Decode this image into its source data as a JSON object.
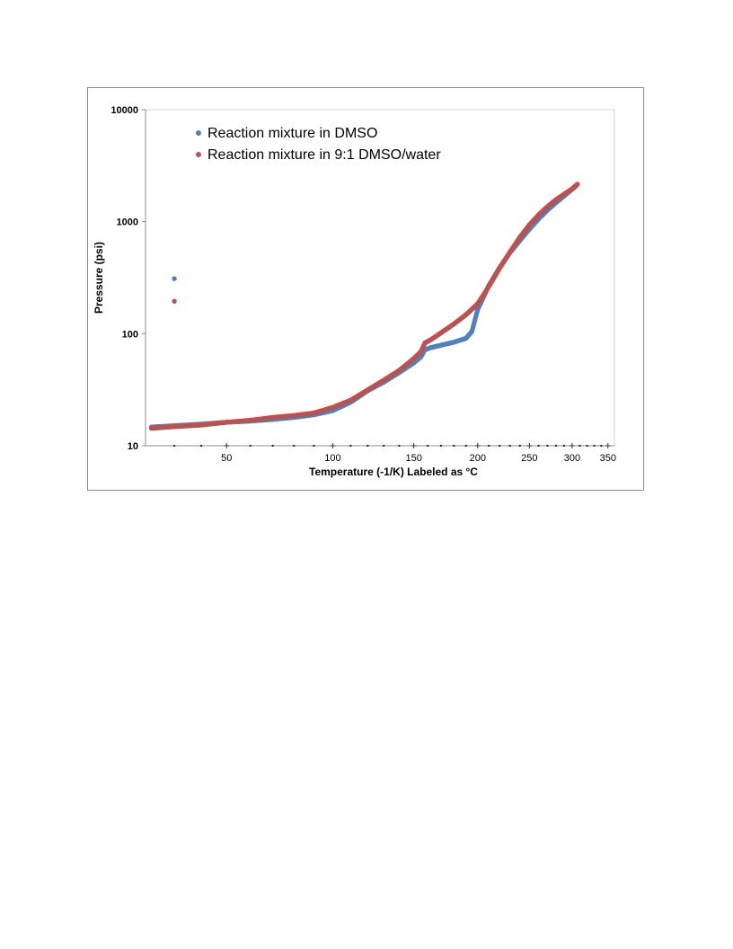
{
  "chart_data": {
    "type": "scatter",
    "xlabel": "Temperature (-1/K) Labeled as °C",
    "ylabel": "Pressure (psi)",
    "y_scale": "log",
    "ylim": [
      10,
      10000
    ],
    "y_ticks": [
      10,
      100,
      1000,
      10000
    ],
    "x_scale": "reciprocal",
    "xlim": [
      20,
      360
    ],
    "x_ticks": [
      50,
      100,
      150,
      200,
      250,
      300,
      350
    ],
    "x_minor_ticks": [
      30,
      40,
      60,
      70,
      80,
      90,
      110,
      120,
      130,
      140,
      160,
      170,
      180,
      190,
      210,
      220,
      230,
      240,
      260,
      270,
      280,
      290,
      310,
      320,
      330,
      340
    ],
    "grid": false,
    "legend_position": "top-left",
    "series": [
      {
        "name": "Reaction mixture in DMSO",
        "color": "#4f81bd",
        "points": [
          [
            22,
            14.7
          ],
          [
            30,
            15.1
          ],
          [
            40,
            15.6
          ],
          [
            50,
            16.2
          ],
          [
            60,
            16.6
          ],
          [
            70,
            17.2
          ],
          [
            80,
            17.9
          ],
          [
            90,
            18.9
          ],
          [
            100,
            20.6
          ],
          [
            110,
            24.5
          ],
          [
            120,
            31
          ],
          [
            130,
            37
          ],
          [
            140,
            45
          ],
          [
            150,
            55
          ],
          [
            155,
            62
          ],
          [
            158,
            72
          ],
          [
            162,
            75
          ],
          [
            170,
            79
          ],
          [
            180,
            84
          ],
          [
            190,
            91
          ],
          [
            195,
            105
          ],
          [
            200,
            165
          ],
          [
            210,
            270
          ],
          [
            220,
            390
          ],
          [
            230,
            530
          ],
          [
            240,
            680
          ],
          [
            250,
            860
          ],
          [
            260,
            1060
          ],
          [
            270,
            1270
          ],
          [
            280,
            1480
          ],
          [
            290,
            1700
          ],
          [
            300,
            1950
          ],
          [
            305,
            2080
          ]
        ],
        "outliers": [
          [
            30,
            310
          ]
        ]
      },
      {
        "name": "Reaction mixture in 9:1 DMSO/water",
        "color": "#c0504d",
        "points": [
          [
            22,
            14.3
          ],
          [
            30,
            14.8
          ],
          [
            40,
            15.3
          ],
          [
            50,
            16.2
          ],
          [
            60,
            16.9
          ],
          [
            70,
            17.9
          ],
          [
            80,
            18.6
          ],
          [
            90,
            19.6
          ],
          [
            100,
            22
          ],
          [
            110,
            25.5
          ],
          [
            120,
            31.5
          ],
          [
            130,
            38.5
          ],
          [
            140,
            47
          ],
          [
            150,
            60
          ],
          [
            155,
            69
          ],
          [
            158,
            83
          ],
          [
            162,
            88
          ],
          [
            170,
            102
          ],
          [
            180,
            122
          ],
          [
            190,
            148
          ],
          [
            200,
            185
          ],
          [
            210,
            265
          ],
          [
            220,
            385
          ],
          [
            230,
            535
          ],
          [
            240,
            725
          ],
          [
            250,
            935
          ],
          [
            260,
            1150
          ],
          [
            270,
            1360
          ],
          [
            280,
            1570
          ],
          [
            290,
            1760
          ],
          [
            300,
            1960
          ],
          [
            307,
            2160
          ]
        ],
        "outliers": [
          [
            30,
            195
          ]
        ]
      }
    ]
  }
}
